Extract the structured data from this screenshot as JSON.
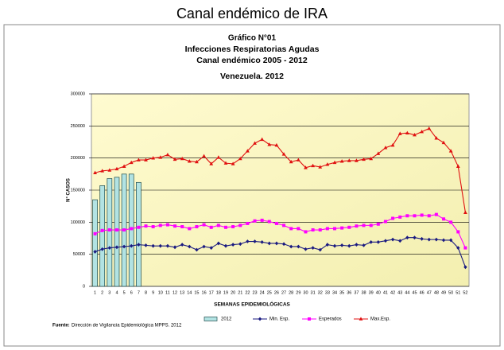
{
  "page_title": "Canal endémico de IRA",
  "chart_data": {
    "type": "bar",
    "title_lines": [
      "Gráfico  N°01",
      "Infecciones Respiratorias Agudas",
      "Canal endémico 2005 - 2012",
      "Venezuela. 2012"
    ],
    "x_label": "SEMANAS EPIDEMIOLÓGICAS",
    "y_label": "N° CASOS",
    "categories": [
      1,
      2,
      3,
      4,
      5,
      6,
      7,
      8,
      9,
      10,
      11,
      12,
      13,
      14,
      15,
      16,
      17,
      18,
      19,
      20,
      21,
      22,
      23,
      24,
      25,
      26,
      27,
      28,
      29,
      30,
      31,
      32,
      33,
      34,
      35,
      36,
      37,
      38,
      39,
      40,
      41,
      42,
      43,
      44,
      45,
      46,
      47,
      48,
      49,
      50,
      51,
      52
    ],
    "ylim": [
      0,
      300000
    ],
    "yticks": [
      0,
      50000,
      100000,
      150000,
      200000,
      250000,
      300000
    ],
    "grid": true,
    "series": [
      {
        "name": "2012",
        "type": "bar",
        "color": "#b2e3e3",
        "values": [
          135000,
          157000,
          168000,
          170000,
          175000,
          175000,
          162000,
          null,
          null,
          null,
          null,
          null,
          null,
          null,
          null,
          null,
          null,
          null,
          null,
          null,
          null,
          null,
          null,
          null,
          null,
          null,
          null,
          null,
          null,
          null,
          null,
          null,
          null,
          null,
          null,
          null,
          null,
          null,
          null,
          null,
          null,
          null,
          null,
          null,
          null,
          null,
          null,
          null,
          null,
          null,
          null,
          null
        ]
      },
      {
        "name": "Min. Esp.",
        "type": "line",
        "marker": "diamond",
        "color": "#1a1a80",
        "values": [
          54000,
          58000,
          60000,
          61000,
          62000,
          63000,
          65000,
          64000,
          63000,
          63000,
          63000,
          61000,
          65000,
          62000,
          57000,
          62000,
          60000,
          67000,
          63000,
          65000,
          66000,
          70000,
          70000,
          69000,
          67000,
          67000,
          66000,
          62000,
          62000,
          58000,
          60000,
          57000,
          65000,
          63000,
          64000,
          63000,
          65000,
          64000,
          69000,
          69000,
          71000,
          73000,
          71000,
          76000,
          76000,
          74000,
          73000,
          73000,
          72000,
          72000,
          60000,
          30000
        ]
      },
      {
        "name": "Esperados",
        "type": "line",
        "marker": "square",
        "color": "#ff00ff",
        "values": [
          82000,
          87000,
          88000,
          88000,
          88000,
          90000,
          92000,
          94000,
          93000,
          95000,
          96000,
          94000,
          93000,
          90000,
          93000,
          96000,
          92000,
          95000,
          92000,
          93000,
          95000,
          98000,
          102000,
          103000,
          101000,
          98000,
          95000,
          90000,
          90000,
          85000,
          88000,
          88000,
          90000,
          90000,
          91000,
          92000,
          94000,
          95000,
          95000,
          97000,
          101000,
          106000,
          108000,
          110000,
          110000,
          111000,
          110000,
          112000,
          105000,
          100000,
          85000,
          60000
        ]
      },
      {
        "name": "Max.Esp.",
        "type": "line",
        "marker": "triangle",
        "color": "#e01010",
        "values": [
          177000,
          180000,
          181000,
          183000,
          187000,
          193000,
          197000,
          197000,
          200000,
          201000,
          205000,
          198000,
          199000,
          195000,
          194000,
          203000,
          191000,
          201000,
          192000,
          191000,
          199000,
          211000,
          223000,
          229000,
          221000,
          220000,
          206000,
          194000,
          197000,
          185000,
          188000,
          186000,
          190000,
          193000,
          195000,
          196000,
          196000,
          198000,
          199000,
          207000,
          216000,
          220000,
          238000,
          239000,
          236000,
          241000,
          246000,
          231000,
          224000,
          211000,
          187000,
          115000
        ]
      }
    ],
    "source_label": "Fuente:",
    "source": "Dirección de Vigilancia Epidemiológica MPPS. 2012"
  }
}
